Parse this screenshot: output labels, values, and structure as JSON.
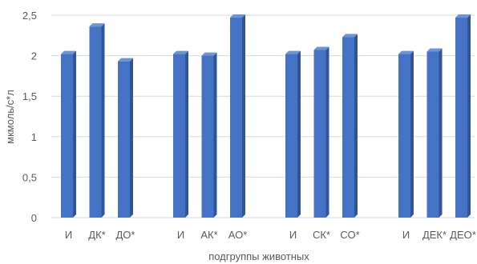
{
  "chart_data": {
    "type": "bar",
    "style": "3d-column",
    "ylabel": "мкмоль/с*л",
    "xlabel": "подгруппы животных",
    "ylim": [
      0,
      2.5
    ],
    "yticks": [
      "0",
      "0,5",
      "1",
      "1,5",
      "2",
      "2,5"
    ],
    "grid": true,
    "legend": "none",
    "bar_color": "#4472c4",
    "categories": [
      "И",
      "ДК*",
      "ДО*",
      "И",
      "АК*",
      "АО*",
      "И",
      "СК*",
      "СО*",
      "И",
      "ДЕК*",
      "ДЕО*"
    ],
    "groups": [
      {
        "categories": [
          "И",
          "ДК*",
          "ДО*"
        ],
        "values": [
          2.02,
          2.36,
          1.93
        ]
      },
      {
        "categories": [
          "И",
          "АК*",
          "АО*"
        ],
        "values": [
          2.02,
          2.0,
          2.47
        ]
      },
      {
        "categories": [
          "И",
          "СК*",
          "СО*"
        ],
        "values": [
          2.02,
          2.07,
          2.23
        ]
      },
      {
        "categories": [
          "И",
          "ДЕК*",
          "ДЕО*"
        ],
        "values": [
          2.02,
          2.05,
          2.47
        ]
      }
    ]
  }
}
